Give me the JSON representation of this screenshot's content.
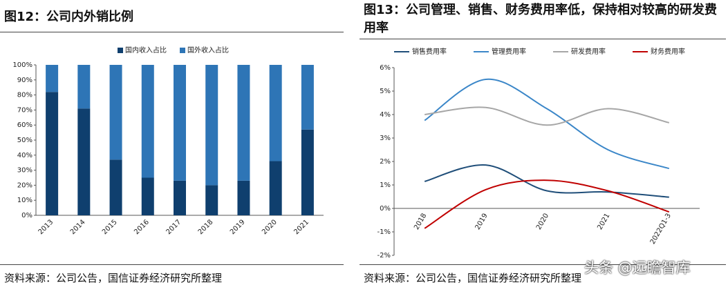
{
  "chart_data": [
    {
      "type": "stacked_bar",
      "title": "图12：公司内外销比例",
      "source": "资料来源：公司公告，国信证券经济研究所整理",
      "categories": [
        "2013",
        "2014",
        "2015",
        "2016",
        "2017",
        "2018",
        "2019",
        "2020",
        "2021"
      ],
      "series": [
        {
          "name": "国内收入占比",
          "color": "#0f3f6e",
          "values": [
            82,
            71,
            37,
            25,
            23,
            20,
            23,
            36,
            57
          ]
        },
        {
          "name": "国外收入占比",
          "color": "#2e75b6",
          "values": [
            18,
            29,
            63,
            75,
            77,
            80,
            77,
            64,
            43
          ]
        }
      ],
      "ylim": [
        0,
        100
      ],
      "yticks": [
        {
          "value": 0,
          "label": "0%"
        },
        {
          "value": 10,
          "label": "10%"
        },
        {
          "value": 20,
          "label": "20%"
        },
        {
          "value": 30,
          "label": "30%"
        },
        {
          "value": 40,
          "label": "40%"
        },
        {
          "value": 50,
          "label": "50%"
        },
        {
          "value": 60,
          "label": "60%"
        },
        {
          "value": 70,
          "label": "70%"
        },
        {
          "value": 80,
          "label": "80%"
        },
        {
          "value": 90,
          "label": "90%"
        },
        {
          "value": 100,
          "label": "100%"
        }
      ],
      "legend": "top"
    },
    {
      "type": "line",
      "title": "图13：公司管理、销售、财务费用率低，保持相对较高的研发费用率",
      "source": "资料来源：公司公告，国信证券经济研究所整理",
      "categories": [
        "2018",
        "2019",
        "2020",
        "2021",
        "2022Q1-3"
      ],
      "series": [
        {
          "name": "销售费用率",
          "color": "#1f4e79",
          "values": [
            1.15,
            1.85,
            0.75,
            0.7,
            0.48
          ]
        },
        {
          "name": "管理费用率",
          "color": "#3a86c8",
          "values": [
            3.75,
            5.5,
            4.25,
            2.5,
            1.7
          ]
        },
        {
          "name": "研发费用率",
          "color": "#a6a6a6",
          "values": [
            4.0,
            4.3,
            3.55,
            4.25,
            3.65
          ]
        },
        {
          "name": "财务费用率",
          "color": "#c00000",
          "values": [
            -0.85,
            0.8,
            1.2,
            0.75,
            -0.15
          ]
        }
      ],
      "ylim": [
        -2,
        6
      ],
      "yticks": [
        {
          "value": -2,
          "label": "-2%"
        },
        {
          "value": -1,
          "label": "-1%"
        },
        {
          "value": 0,
          "label": "0%"
        },
        {
          "value": 1,
          "label": "1%"
        },
        {
          "value": 2,
          "label": "2%"
        },
        {
          "value": 3,
          "label": "3%"
        },
        {
          "value": 4,
          "label": "4%"
        },
        {
          "value": 5,
          "label": "5%"
        },
        {
          "value": 6,
          "label": "6%"
        }
      ],
      "legend": "top"
    }
  ],
  "watermark": "头条 @远瞻智库"
}
